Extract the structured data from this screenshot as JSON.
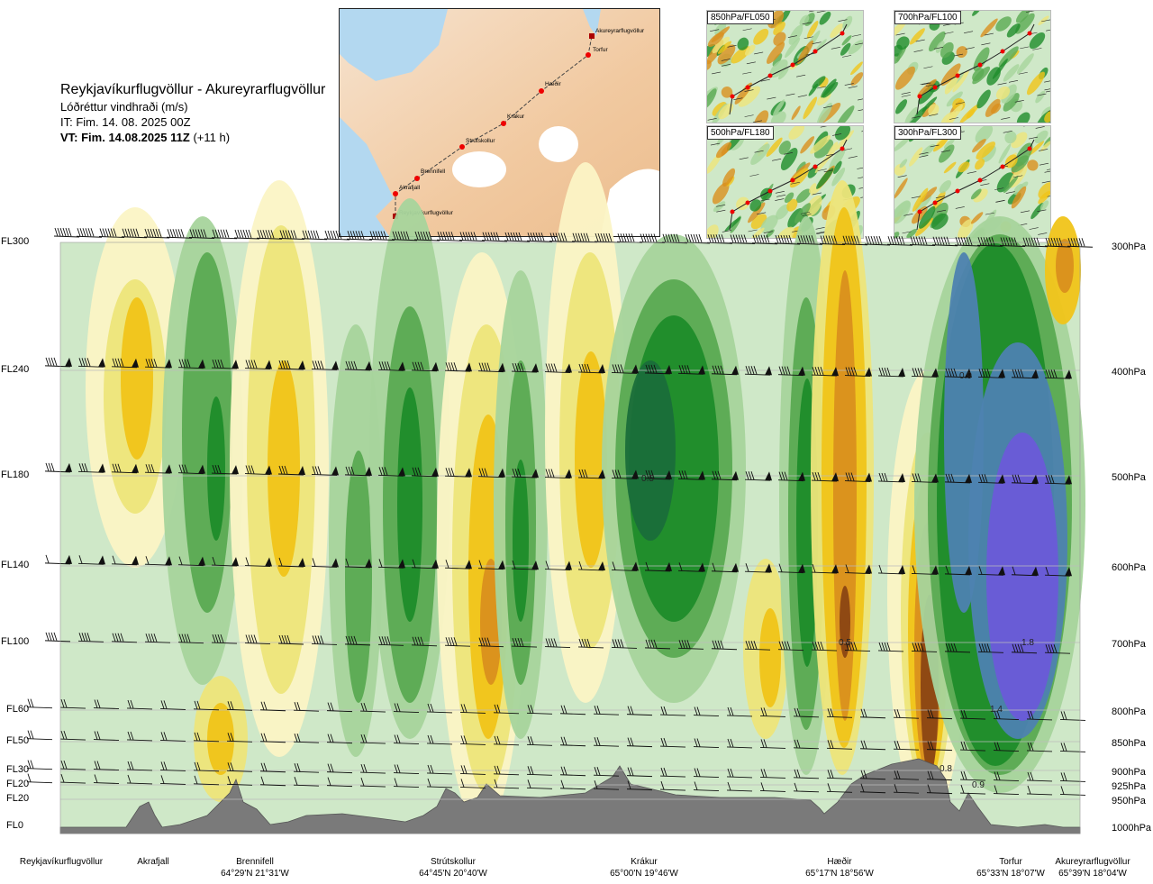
{
  "header": {
    "route": "Reykjavíkurflugvöllur - Akureyrarflugvöllur",
    "quantity": "Lóðréttur vindhraði (m/s)",
    "init_time": "IT: Fim. 14. 08. 2025 00Z",
    "valid_time_bold": "VT: Fim. 14.08.2025 11Z",
    "valid_time_lead": "(+11 h)"
  },
  "route_map": {
    "waypoints": [
      "Akureyrarflugvöllur",
      "Torfur",
      "Hæðir",
      "Krákur",
      "Strútskollur",
      "Brennifell",
      "Akrafjall",
      "Reykjavíkurflugvöllur"
    ]
  },
  "mini_maps": [
    {
      "label": "850hPa/FL050"
    },
    {
      "label": "700hPa/FL100"
    },
    {
      "label": "500hPa/FL180"
    },
    {
      "label": "300hPa/FL300"
    }
  ],
  "chart_data": {
    "type": "heatmap",
    "title": "Lóðréttur vindhraði (m/s)",
    "levels": [
      {
        "fl": "FL300",
        "hpa": "300hPa"
      },
      {
        "fl": "FL240",
        "hpa": "400hPa"
      },
      {
        "fl": "FL180",
        "hpa": "500hPa"
      },
      {
        "fl": "FL140",
        "hpa": "600hPa"
      },
      {
        "fl": "FL100",
        "hpa": "700hPa"
      },
      {
        "fl": "FL60",
        "hpa": "800hPa"
      },
      {
        "fl": "FL50",
        "hpa": "850hPa"
      },
      {
        "fl": "FL30",
        "hpa": "900hPa"
      },
      {
        "fl": "FL20",
        "hpa": "925hPa"
      },
      {
        "fl": "FL20",
        "hpa": "950hPa"
      },
      {
        "fl": "FL0",
        "hpa": "1000hPa"
      }
    ],
    "locations": [
      {
        "name": "Reykjavíkurflugvöllur",
        "coord": ""
      },
      {
        "name": "Akrafjall",
        "coord": ""
      },
      {
        "name": "Brennifell",
        "coord": "64°29'N 21°31'W"
      },
      {
        "name": "Strútskollur",
        "coord": "64°45'N 20°40'W"
      },
      {
        "name": "Krákur",
        "coord": "65°00'N 19°46'W"
      },
      {
        "name": "Hæðir",
        "coord": "65°17'N 18°56'W"
      },
      {
        "name": "Torfur",
        "coord": "65°33'N 18°07'W"
      },
      {
        "name": "Akureyrarflugvöllur",
        "coord": "65°39'N 18°04'W"
      }
    ],
    "annotations": [
      "0.9",
      "0.5",
      "0.5",
      "1.8",
      "1.4",
      "0.8",
      "0.9"
    ],
    "palette": {
      "down_strong": "#8b4513",
      "down_mid": "#d9901e",
      "down_weak": "#f0c419",
      "down_faint": "#ede57a",
      "neutral": "#fbf4c5",
      "up_faint": "#cfe8c8",
      "up_weak": "#a6d49c",
      "up_mid": "#5aaa52",
      "up_strong": "#1e8c2a",
      "up_vstrong": "#4d82b0",
      "up_max": "#6a5ad8",
      "terrain": "#7a7a7a"
    }
  }
}
